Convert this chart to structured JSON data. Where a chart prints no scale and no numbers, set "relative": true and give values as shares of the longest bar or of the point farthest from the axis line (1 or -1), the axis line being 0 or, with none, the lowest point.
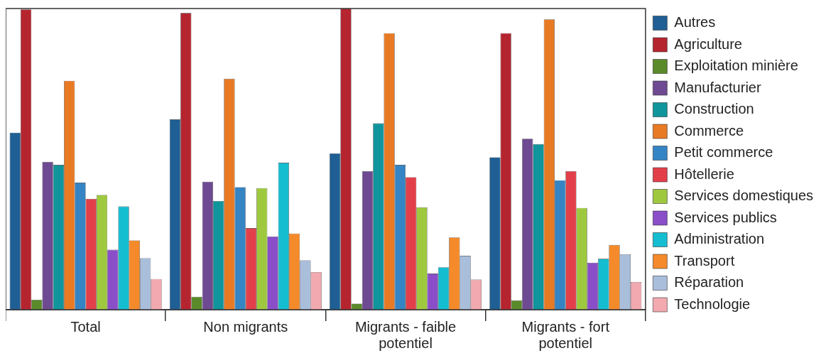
{
  "chart_data": {
    "type": "bar",
    "relative": true,
    "legend": "right",
    "grid": false,
    "categories": [
      "Total",
      "Non migrants",
      "Migrants - faible potentiel",
      "Migrants - fort potentiel"
    ],
    "series": [
      {
        "name": "Autres",
        "color": "#1f5f94",
        "values": [
          0.588,
          0.632,
          0.519,
          0.506
        ]
      },
      {
        "name": "Agriculture",
        "color": "#b5252f",
        "values": [
          0.997,
          0.985,
          1,
          0.918
        ]
      },
      {
        "name": "Exploitation minière",
        "color": "#5a8a2a",
        "values": [
          0.033,
          0.043,
          0.02,
          0.031
        ]
      },
      {
        "name": "Manufacturier",
        "color": "#6e4a92",
        "values": [
          0.491,
          0.425,
          0.46,
          0.568
        ]
      },
      {
        "name": "Construction",
        "color": "#10959c",
        "values": [
          0.481,
          0.361,
          0.619,
          0.55
        ]
      },
      {
        "name": "Commerce",
        "color": "#e87a24",
        "values": [
          0.76,
          0.767,
          0.918,
          0.964
        ]
      },
      {
        "name": "Petit commerce",
        "color": "#3584c4",
        "values": [
          0.422,
          0.407,
          0.481,
          0.43
        ]
      },
      {
        "name": "Hôtellerie",
        "color": "#e33f4a",
        "values": [
          0.368,
          0.271,
          0.44,
          0.46
        ]
      },
      {
        "name": "Services domestiques",
        "color": "#9ec93e",
        "values": [
          0.381,
          0.404,
          0.34,
          0.338
        ]
      },
      {
        "name": "Services publics",
        "color": "#8a4fc8",
        "values": [
          0.199,
          0.243,
          0.12,
          0.156
        ]
      },
      {
        "name": "Administration",
        "color": "#15bdd0",
        "values": [
          0.343,
          0.488,
          0.141,
          0.169
        ]
      },
      {
        "name": "Transport",
        "color": "#f58a2a",
        "values": [
          0.23,
          0.253,
          0.24,
          0.215
        ]
      },
      {
        "name": "Réparation",
        "color": "#a9bedb",
        "values": [
          0.171,
          0.164,
          0.179,
          0.184
        ]
      },
      {
        "name": "Technologie",
        "color": "#f2a9b0",
        "values": [
          0.102,
          0.125,
          0.1,
          0.092
        ]
      }
    ]
  }
}
